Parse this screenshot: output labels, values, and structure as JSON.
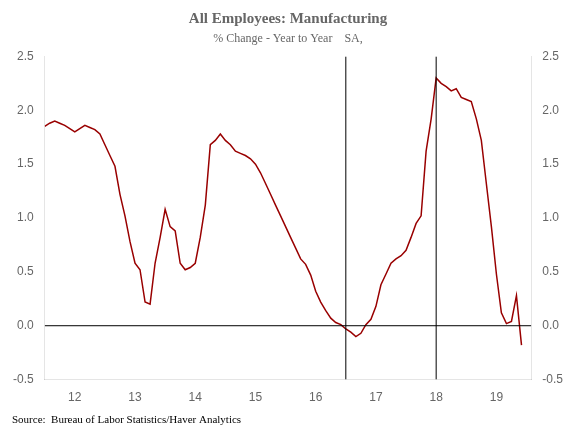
{
  "chart_data": {
    "type": "line",
    "title": "All Employees: Manufacturing",
    "subtitle": "% Change - Year to Year    SA,",
    "source": "Source:  Bureau of Labor Statistics/Haver Analytics",
    "color": "#990000",
    "grid": false,
    "xlim": [
      11.5,
      19.58
    ],
    "xticks": [
      12,
      13,
      14,
      15,
      16,
      17,
      18,
      19
    ],
    "ylim": [
      -0.5,
      2.5
    ],
    "yticks": [
      -0.5,
      {
        "value": 0.0,
        "label": "0.0"
      },
      0.5,
      {
        "value": 1.0,
        "label": "1.0"
      },
      1.5,
      {
        "value": 2.0,
        "label": "2.0"
      },
      2.5
    ],
    "y2lim": [
      -0.5,
      2.5
    ],
    "y2ticks": [
      -0.5,
      {
        "value": 0.0,
        "label": "0.0"
      },
      0.5,
      {
        "value": 1.0,
        "label": "1.0"
      },
      1.5,
      {
        "value": 2.0,
        "label": "2.0"
      },
      2.5
    ],
    "vlines": [
      16.5,
      18.0
    ],
    "hlines": [
      0
    ],
    "x": [
      11.5,
      11.583,
      11.667,
      11.75,
      11.833,
      11.917,
      12.0,
      12.083,
      12.167,
      12.25,
      12.333,
      12.417,
      12.5,
      12.583,
      12.667,
      12.75,
      12.833,
      12.917,
      13.0,
      13.083,
      13.167,
      13.25,
      13.333,
      13.417,
      13.5,
      13.583,
      13.667,
      13.75,
      13.833,
      13.917,
      14.0,
      14.083,
      14.167,
      14.25,
      14.333,
      14.417,
      14.5,
      14.583,
      14.667,
      14.75,
      14.833,
      14.917,
      15.0,
      15.083,
      15.167,
      15.25,
      15.333,
      15.417,
      15.5,
      15.583,
      15.667,
      15.75,
      15.833,
      15.917,
      16.0,
      16.083,
      16.167,
      16.25,
      16.333,
      16.417,
      16.5,
      16.583,
      16.667,
      16.75,
      16.833,
      16.917,
      17.0,
      17.083,
      17.167,
      17.25,
      17.333,
      17.417,
      17.5,
      17.583,
      17.667,
      17.75,
      17.833,
      17.917,
      18.0,
      18.083,
      18.167,
      18.25,
      18.333,
      18.417,
      18.5,
      18.583,
      18.667,
      18.75,
      18.833,
      18.917,
      19.0,
      19.083,
      19.167,
      19.25,
      19.333,
      19.417
    ],
    "values": [
      1.85,
      1.88,
      1.9,
      1.88,
      1.86,
      1.83,
      1.8,
      1.83,
      1.86,
      1.84,
      1.82,
      1.78,
      1.68,
      1.58,
      1.48,
      1.22,
      1.02,
      0.78,
      0.58,
      0.52,
      0.22,
      0.2,
      0.58,
      0.82,
      1.08,
      0.92,
      0.88,
      0.58,
      0.52,
      0.54,
      0.58,
      0.82,
      1.12,
      1.68,
      1.72,
      1.78,
      1.72,
      1.68,
      1.62,
      1.6,
      1.58,
      1.55,
      1.5,
      1.42,
      1.32,
      1.22,
      1.12,
      1.02,
      0.92,
      0.82,
      0.72,
      0.62,
      0.57,
      0.47,
      0.32,
      0.22,
      0.14,
      0.07,
      0.03,
      0.01,
      -0.03,
      -0.06,
      -0.1,
      -0.07,
      0.01,
      0.06,
      0.18,
      0.38,
      0.48,
      0.58,
      0.62,
      0.65,
      0.7,
      0.82,
      0.95,
      1.02,
      1.62,
      1.92,
      2.3,
      2.25,
      2.22,
      2.18,
      2.2,
      2.12,
      2.1,
      2.08,
      1.92,
      1.72,
      1.32,
      0.92,
      0.48,
      0.12,
      0.02,
      0.04,
      0.28,
      -0.18
    ]
  }
}
